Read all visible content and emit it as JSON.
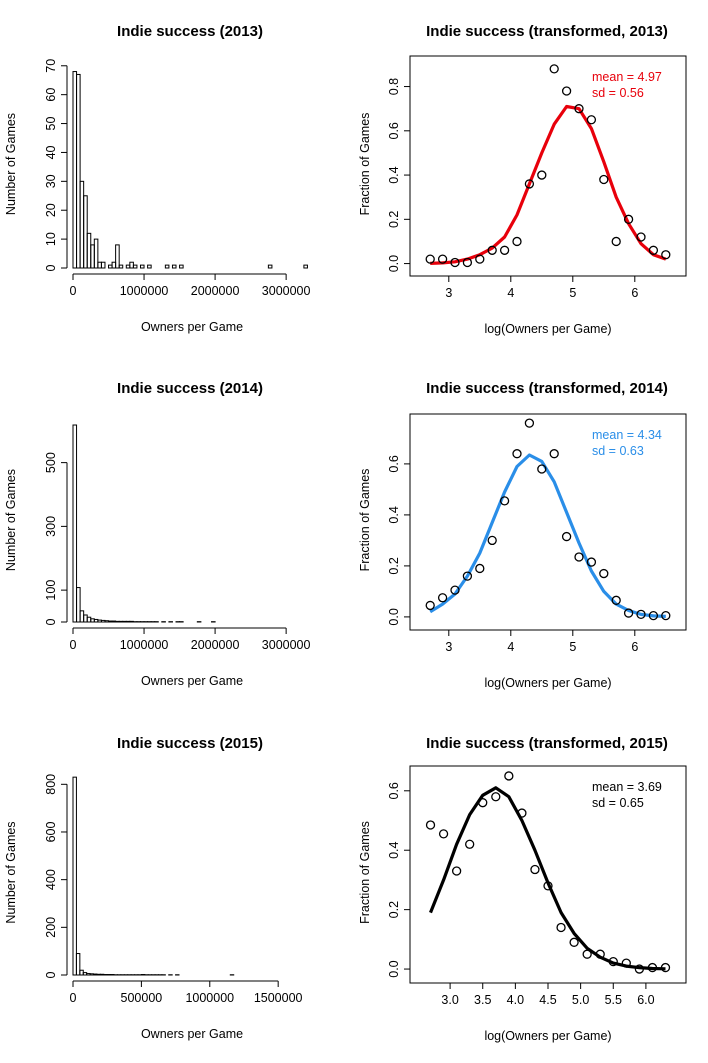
{
  "chart_data": [
    {
      "type": "bar",
      "title": "Indie success (2013)",
      "xlabel": "Owners per Game",
      "ylabel": "Number of Games",
      "xlim": [
        0,
        3350000
      ],
      "ylim": [
        0,
        72
      ],
      "xticks": [
        0,
        1000000,
        2000000,
        3000000
      ],
      "xtick_labels": [
        "0",
        "1000000",
        "2000000",
        "3000000"
      ],
      "yticks": [
        0,
        10,
        20,
        30,
        40,
        50,
        60,
        70
      ],
      "ytick_labels": [
        "0",
        "10",
        "20",
        "30",
        "40",
        "50",
        "60",
        "70"
      ],
      "bin_width": 50000,
      "values": [
        68,
        67,
        30,
        25,
        12,
        8,
        10,
        2,
        2,
        0,
        1,
        2,
        8,
        1,
        0,
        1,
        2,
        1,
        0,
        1,
        0,
        1,
        0,
        0,
        0,
        0,
        1,
        0,
        1,
        0,
        1,
        0,
        0,
        0,
        0,
        0,
        0,
        0,
        0,
        0,
        0,
        0,
        0,
        0,
        0,
        0,
        0,
        0,
        0,
        0,
        0,
        0,
        0,
        0,
        0,
        1,
        0,
        0,
        0,
        0,
        0,
        0,
        0,
        0,
        0,
        1
      ]
    },
    {
      "type": "scatter",
      "title": "Indie success (transformed, 2013)",
      "xlabel": "log(Owners per Game)",
      "ylabel": "Fraction of Games",
      "xlim": [
        2.6,
        6.6
      ],
      "ylim": [
        -0.02,
        0.92
      ],
      "xticks": [
        3,
        4,
        5,
        6
      ],
      "xtick_labels": [
        "3",
        "4",
        "5",
        "6"
      ],
      "yticks": [
        0,
        0.2,
        0.4,
        0.6,
        0.8
      ],
      "ytick_labels": [
        "0.0",
        "0.2",
        "0.4",
        "0.6",
        "0.8"
      ],
      "points_x": [
        2.7,
        2.9,
        3.1,
        3.3,
        3.5,
        3.7,
        3.9,
        4.1,
        4.3,
        4.5,
        4.7,
        4.9,
        5.1,
        5.3,
        5.5,
        5.7,
        5.9,
        6.1,
        6.3,
        6.5
      ],
      "points_y": [
        0.02,
        0.02,
        0.005,
        0.005,
        0.02,
        0.06,
        0.06,
        0.1,
        0.36,
        0.4,
        0.88,
        0.78,
        0.7,
        0.65,
        0.38,
        0.1,
        0.2,
        0.12,
        0.06,
        0.04
      ],
      "fit": {
        "x": [
          2.7,
          2.9,
          3.1,
          3.3,
          3.5,
          3.7,
          3.9,
          4.1,
          4.3,
          4.5,
          4.7,
          4.9,
          5.1,
          5.3,
          5.5,
          5.7,
          5.9,
          6.1,
          6.3,
          6.5
        ],
        "y": [
          0.001,
          0.003,
          0.008,
          0.02,
          0.04,
          0.07,
          0.12,
          0.22,
          0.36,
          0.5,
          0.63,
          0.71,
          0.7,
          0.61,
          0.46,
          0.3,
          0.18,
          0.09,
          0.04,
          0.02
        ]
      },
      "line_color": "#e8000b",
      "stats": {
        "mean_label": "mean = 4.97",
        "sd_label": "sd   = 0.56"
      }
    },
    {
      "type": "bar",
      "title": "Indie success (2014)",
      "xlabel": "Owners per Game",
      "ylabel": "Number of Games",
      "xlim": [
        0,
        3350000
      ],
      "ylim": [
        0,
        640
      ],
      "xticks": [
        0,
        1000000,
        2000000,
        3000000
      ],
      "xtick_labels": [
        "0",
        "1000000",
        "2000000",
        "3000000"
      ],
      "yticks": [
        0,
        100,
        300,
        500
      ],
      "ytick_labels": [
        "0",
        "100",
        "300",
        "500"
      ],
      "bin_width": 50000,
      "values": [
        618,
        108,
        35,
        22,
        15,
        10,
        8,
        6,
        5,
        4,
        3,
        3,
        2,
        2,
        2,
        2,
        2,
        1,
        1,
        1,
        1,
        1,
        1,
        1,
        0,
        1,
        0,
        1,
        0,
        1,
        1,
        0,
        0,
        0,
        0,
        1,
        0,
        0,
        0,
        1,
        0,
        0,
        0,
        0,
        0,
        0,
        0,
        0,
        0,
        0,
        0,
        0,
        0,
        0,
        0,
        0,
        0,
        0,
        0,
        0,
        0,
        0,
        0,
        0,
        0,
        0,
        0
      ]
    },
    {
      "type": "scatter",
      "title": "Indie success (transformed, 2014)",
      "xlabel": "log(Owners per Game)",
      "ylabel": "Fraction of Games",
      "xlim": [
        2.6,
        6.6
      ],
      "ylim": [
        -0.02,
        0.78
      ],
      "xticks": [
        3,
        4,
        5,
        6
      ],
      "xtick_labels": [
        "3",
        "4",
        "5",
        "6"
      ],
      "yticks": [
        0,
        0.2,
        0.4,
        0.6
      ],
      "ytick_labels": [
        "0.0",
        "0.2",
        "0.4",
        "0.6"
      ],
      "points_x": [
        2.7,
        2.9,
        3.1,
        3.3,
        3.5,
        3.7,
        3.9,
        4.1,
        4.3,
        4.5,
        4.7,
        4.9,
        5.1,
        5.3,
        5.5,
        5.7,
        5.9,
        6.1,
        6.3,
        6.5
      ],
      "points_y": [
        0.045,
        0.075,
        0.105,
        0.16,
        0.19,
        0.3,
        0.455,
        0.64,
        0.76,
        0.58,
        0.64,
        0.315,
        0.235,
        0.215,
        0.17,
        0.065,
        0.015,
        0.01,
        0.005,
        0.005
      ],
      "fit": {
        "x": [
          2.7,
          2.9,
          3.1,
          3.3,
          3.5,
          3.7,
          3.9,
          4.1,
          4.3,
          4.5,
          4.7,
          4.9,
          5.1,
          5.3,
          5.5,
          5.7,
          5.9,
          6.1,
          6.3,
          6.5
        ],
        "y": [
          0.02,
          0.05,
          0.09,
          0.16,
          0.25,
          0.37,
          0.49,
          0.59,
          0.635,
          0.61,
          0.53,
          0.41,
          0.29,
          0.18,
          0.1,
          0.05,
          0.025,
          0.01,
          0.004,
          0.002
        ]
      },
      "line_color": "#2a8ee8",
      "stats": {
        "mean_label": "mean = 4.34",
        "sd_label": "sd   = 0.63"
      }
    },
    {
      "type": "bar",
      "title": "Indie success (2015)",
      "xlabel": "Owners per Game",
      "ylabel": "Number of Games",
      "xlim": [
        0,
        1740000
      ],
      "ylim": [
        0,
        860
      ],
      "xticks": [
        0,
        500000,
        1000000,
        1500000
      ],
      "xtick_labels": [
        "0",
        "500000",
        "1000000",
        "1500000"
      ],
      "yticks": [
        0,
        200,
        400,
        600,
        800
      ],
      "ytick_labels": [
        "0",
        "200",
        "400",
        "600",
        "800"
      ],
      "bin_width": 25000,
      "values": [
        830,
        90,
        20,
        10,
        6,
        5,
        4,
        3,
        3,
        2,
        2,
        2,
        1,
        1,
        1,
        1,
        1,
        1,
        1,
        1,
        2,
        1,
        1,
        1,
        1,
        1,
        1,
        0,
        1,
        0,
        1,
        0,
        0,
        0,
        0,
        0,
        0,
        0,
        0,
        0,
        0,
        0,
        0,
        0,
        0,
        0,
        1,
        0,
        0,
        0,
        0,
        0,
        0,
        0,
        0,
        0,
        0,
        0,
        0,
        0,
        0,
        0,
        0,
        0,
        0,
        0,
        0,
        0,
        0,
        0
      ]
    },
    {
      "type": "scatter",
      "title": "Indie success (transformed, 2015)",
      "xlabel": "log(Owners per Game)",
      "ylabel": "Fraction of Games",
      "xlim": [
        2.6,
        6.4
      ],
      "ylim": [
        -0.02,
        0.67
      ],
      "xticks": [
        3.0,
        3.5,
        4.0,
        4.5,
        5.0,
        5.5,
        6.0
      ],
      "xtick_labels": [
        "3.0",
        "3.5",
        "4.0",
        "4.5",
        "5.0",
        "5.5",
        "6.0"
      ],
      "yticks": [
        0,
        0.2,
        0.4,
        0.6
      ],
      "ytick_labels": [
        "0.0",
        "0.2",
        "0.4",
        "0.6"
      ],
      "points_x": [
        2.7,
        2.9,
        3.1,
        3.3,
        3.5,
        3.7,
        3.9,
        4.1,
        4.3,
        4.5,
        4.7,
        4.9,
        5.1,
        5.3,
        5.5,
        5.7,
        5.9,
        6.1,
        6.3
      ],
      "points_y": [
        0.485,
        0.455,
        0.33,
        0.42,
        0.56,
        0.58,
        0.65,
        0.525,
        0.335,
        0.28,
        0.14,
        0.09,
        0.05,
        0.05,
        0.025,
        0.02,
        0.0,
        0.005,
        0.005
      ],
      "fit": {
        "x": [
          2.7,
          2.9,
          3.1,
          3.3,
          3.5,
          3.7,
          3.9,
          4.1,
          4.3,
          4.5,
          4.7,
          4.9,
          5.1,
          5.3,
          5.5,
          5.7,
          5.9,
          6.1,
          6.3
        ],
        "y": [
          0.19,
          0.3,
          0.42,
          0.52,
          0.585,
          0.61,
          0.58,
          0.5,
          0.4,
          0.29,
          0.19,
          0.12,
          0.07,
          0.04,
          0.02,
          0.01,
          0.005,
          0.002,
          0.001
        ]
      },
      "line_color": "#000000",
      "stats": {
        "mean_label": "mean = 3.69",
        "sd_label": "sd   = 0.65"
      }
    }
  ]
}
